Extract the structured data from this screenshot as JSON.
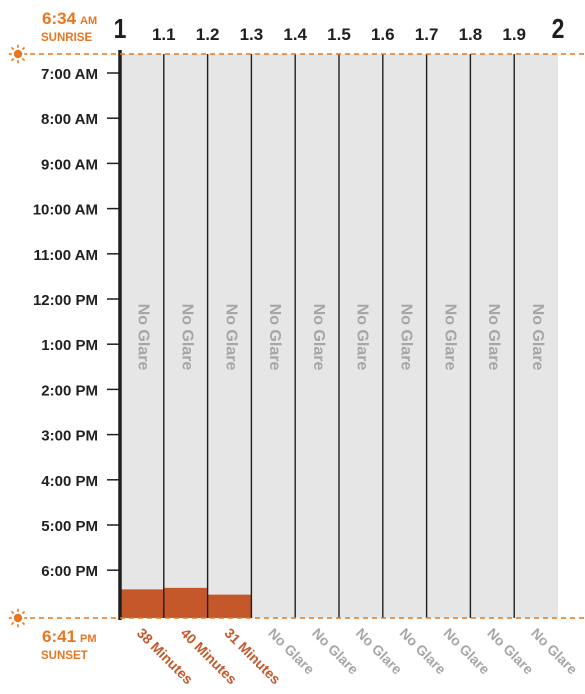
{
  "chart_data": {
    "type": "bar",
    "columns": [
      "1",
      "1.1",
      "1.2",
      "1.3",
      "1.4",
      "1.5",
      "1.6",
      "1.7",
      "1.8",
      "1.9",
      "2"
    ],
    "time_ticks": [
      "7:00 AM",
      "8:00 AM",
      "9:00 AM",
      "10:00 AM",
      "11:00 AM",
      "12:00 PM",
      "1:00 PM",
      "2:00 PM",
      "3:00 PM",
      "4:00 PM",
      "5:00 PM",
      "6:00 PM"
    ],
    "sunrise": {
      "time": "6:34",
      "ampm": "AM",
      "label": "SUNRISE"
    },
    "sunset": {
      "time": "6:41",
      "ampm": "PM",
      "label": "SUNSET"
    },
    "no_glare_label": "No Glare",
    "bars": [
      {
        "column": "1",
        "glare_minutes": 38,
        "label": "38 Minutes"
      },
      {
        "column": "1.1",
        "glare_minutes": 40,
        "label": "40 Minutes"
      },
      {
        "column": "1.2",
        "glare_minutes": 31,
        "label": "31 Minutes"
      },
      {
        "column": "1.3",
        "glare_minutes": 0,
        "label": "No Glare"
      },
      {
        "column": "1.4",
        "glare_minutes": 0,
        "label": "No Glare"
      },
      {
        "column": "1.5",
        "glare_minutes": 0,
        "label": "No Glare"
      },
      {
        "column": "1.6",
        "glare_minutes": 0,
        "label": "No Glare"
      },
      {
        "column": "1.7",
        "glare_minutes": 0,
        "label": "No Glare"
      },
      {
        "column": "1.8",
        "glare_minutes": 0,
        "label": "No Glare"
      },
      {
        "column": "1.9",
        "glare_minutes": 0,
        "label": "No Glare"
      }
    ],
    "colors": {
      "accent": "#e8761f",
      "glare": "#c5582a",
      "band": "#e6e6e6",
      "text": "#1f1f1f",
      "no_glare_text": "#a6a6a6"
    }
  }
}
